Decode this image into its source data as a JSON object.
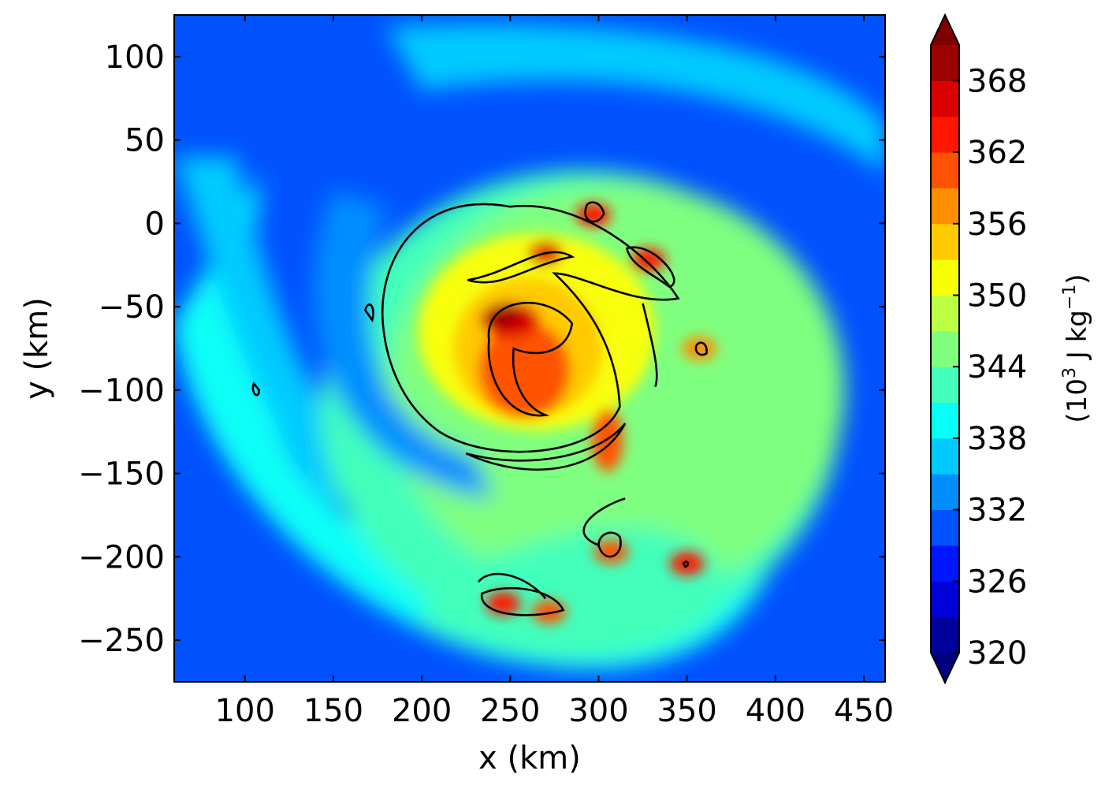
{
  "chart_data": {
    "type": "heatmap",
    "xlabel": "x (km)",
    "ylabel": "y (km)",
    "xlim": [
      60,
      462
    ],
    "ylim": [
      -275,
      125
    ],
    "xticks": [
      100,
      150,
      200,
      250,
      300,
      350,
      400,
      450
    ],
    "yticks": [
      100,
      50,
      0,
      -50,
      -100,
      -150,
      -200,
      -250
    ],
    "colorbar": {
      "label_main": "(10",
      "label_sup": "3",
      "label_units": " J kg",
      "label_exp": "−1",
      "label_close": ")",
      "range": [
        320,
        371
      ],
      "ticks": [
        320,
        326,
        332,
        338,
        344,
        350,
        356,
        362,
        368
      ],
      "extend": "both",
      "colormap": "jet"
    },
    "field_description_features": {
      "background_min_approx": 329,
      "eye_center": [
        258,
        -90
      ],
      "eye_value_approx": 360,
      "eyewall_max_approx": 367,
      "hot_spots": [
        {
          "x": 297,
          "y": 5,
          "value": 364
        },
        {
          "x": 328,
          "y": -22,
          "value": 364
        },
        {
          "x": 270,
          "y": -18,
          "value": 366
        },
        {
          "x": 246,
          "y": -55,
          "value": 368
        },
        {
          "x": 307,
          "y": -197,
          "value": 360
        },
        {
          "x": 350,
          "y": -204,
          "value": 362
        },
        {
          "x": 246,
          "y": -228,
          "value": 363
        },
        {
          "x": 272,
          "y": -233,
          "value": 360
        },
        {
          "x": 357,
          "y": -75,
          "value": 358
        }
      ]
    }
  },
  "colors": {
    "jet_stops": [
      "#00007f",
      "#0000ff",
      "#007fff",
      "#00ffff",
      "#7fff7f",
      "#ffff00",
      "#ff7f00",
      "#ff0000",
      "#7f0000"
    ]
  }
}
